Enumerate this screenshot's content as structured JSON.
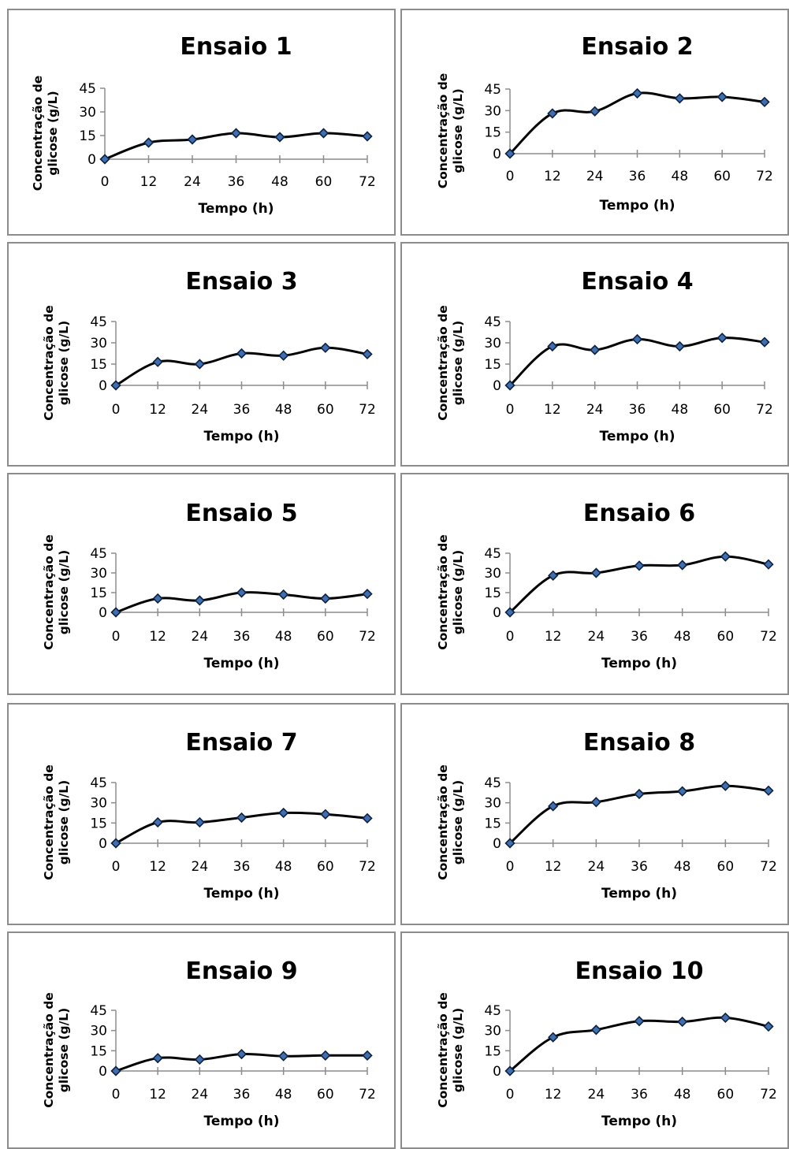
{
  "chart_data": [
    {
      "type": "line",
      "title": "Ensaio 1",
      "xlabel": "Tempo (h)",
      "ylabel": "Concentração de glicose (g/L)",
      "x": [
        0,
        12,
        24,
        36,
        48,
        60,
        72
      ],
      "values": [
        0,
        10.5,
        12.5,
        16.5,
        14,
        16.5,
        14.5
      ],
      "xticks": [
        "0",
        "12",
        "24",
        "36",
        "48",
        "60",
        "72"
      ],
      "yticks": [
        "0",
        "15",
        "30",
        "45"
      ],
      "ylim": [
        0,
        45
      ],
      "grid": false,
      "legend": "none"
    },
    {
      "type": "line",
      "title": "Ensaio 2",
      "xlabel": "Tempo (h)",
      "ylabel": "Concentração de glicose (g/L)",
      "x": [
        0,
        12,
        24,
        36,
        48,
        60,
        72
      ],
      "values": [
        0,
        28,
        29.5,
        42,
        38.5,
        39.5,
        36
      ],
      "xticks": [
        "0",
        "12",
        "24",
        "36",
        "48",
        "60",
        "72"
      ],
      "yticks": [
        "0",
        "15",
        "30",
        "45"
      ],
      "ylim": [
        0,
        45
      ],
      "grid": false,
      "legend": "none"
    },
    {
      "type": "line",
      "title": "Ensaio 3",
      "xlabel": "Tempo (h)",
      "ylabel": "Concentração de glicose (g/L)",
      "x": [
        0,
        12,
        24,
        36,
        48,
        60,
        72
      ],
      "values": [
        0,
        16.5,
        15,
        22.5,
        21,
        26.5,
        22
      ],
      "xticks": [
        "0",
        "12",
        "24",
        "36",
        "48",
        "60",
        "72"
      ],
      "yticks": [
        "0",
        "15",
        "30",
        "45"
      ],
      "ylim": [
        0,
        45
      ],
      "grid": false,
      "legend": "none"
    },
    {
      "type": "line",
      "title": "Ensaio 4",
      "xlabel": "Tempo (h)",
      "ylabel": "Concentração de glicose (g/L)",
      "x": [
        0,
        12,
        24,
        36,
        48,
        60,
        72
      ],
      "values": [
        0,
        27.5,
        25,
        32.5,
        27.5,
        33.5,
        30.5
      ],
      "xticks": [
        "0",
        "12",
        "24",
        "36",
        "48",
        "60",
        "72"
      ],
      "yticks": [
        "0",
        "15",
        "30",
        "45"
      ],
      "ylim": [
        0,
        45
      ],
      "grid": false,
      "legend": "none"
    },
    {
      "type": "line",
      "title": "Ensaio 5",
      "xlabel": "Tempo (h)",
      "ylabel": "Concentração de glicose (g/L)",
      "x": [
        0,
        12,
        24,
        36,
        48,
        60,
        72
      ],
      "values": [
        0,
        10.5,
        9,
        15,
        13.5,
        10.5,
        14
      ],
      "xticks": [
        "0",
        "12",
        "24",
        "36",
        "48",
        "60",
        "72"
      ],
      "yticks": [
        "0",
        "15",
        "30",
        "45"
      ],
      "ylim": [
        0,
        45
      ],
      "grid": false,
      "legend": "none"
    },
    {
      "type": "line",
      "title": "Ensaio 6",
      "xlabel": "Tempo (h)",
      "ylabel": "Concentração de glicose (g/L)",
      "x": [
        0,
        12,
        24,
        36,
        48,
        60,
        72
      ],
      "values": [
        0,
        28,
        30,
        35.5,
        36,
        42.5,
        36.5
      ],
      "xticks": [
        "0",
        "12",
        "24",
        "36",
        "48",
        "60",
        "72"
      ],
      "yticks": [
        "0",
        "15",
        "30",
        "45"
      ],
      "ylim": [
        0,
        45
      ],
      "grid": false,
      "legend": "none"
    },
    {
      "type": "line",
      "title": "Ensaio 7",
      "xlabel": "Tempo (h)",
      "ylabel": "Concentração de glicose (g/L)",
      "x": [
        0,
        12,
        24,
        36,
        48,
        60,
        72
      ],
      "values": [
        0,
        15.5,
        15.5,
        19,
        22.5,
        21.5,
        18.5
      ],
      "xticks": [
        "0",
        "12",
        "24",
        "36",
        "48",
        "60",
        "72"
      ],
      "yticks": [
        "0",
        "15",
        "30",
        "45"
      ],
      "ylim": [
        0,
        45
      ],
      "grid": false,
      "legend": "none"
    },
    {
      "type": "line",
      "title": "Ensaio 8",
      "xlabel": "Tempo (h)",
      "ylabel": "Concentração de glicose (g/L)",
      "x": [
        0,
        12,
        24,
        36,
        48,
        60,
        72
      ],
      "values": [
        0,
        27.5,
        30.5,
        36.5,
        38.5,
        42.5,
        39
      ],
      "xticks": [
        "0",
        "12",
        "24",
        "36",
        "48",
        "60",
        "72"
      ],
      "yticks": [
        "0",
        "15",
        "30",
        "45"
      ],
      "ylim": [
        0,
        45
      ],
      "grid": false,
      "legend": "none"
    },
    {
      "type": "line",
      "title": "Ensaio 9",
      "xlabel": "Tempo (h)",
      "ylabel": "Concentração de glicose (g/L)",
      "x": [
        0,
        12,
        24,
        36,
        48,
        60,
        72
      ],
      "values": [
        0,
        9.5,
        8.5,
        12.5,
        11,
        11.5,
        11.5
      ],
      "xticks": [
        "0",
        "12",
        "24",
        "36",
        "48",
        "60",
        "72"
      ],
      "yticks": [
        "0",
        "15",
        "30",
        "45"
      ],
      "ylim": [
        0,
        45
      ],
      "grid": false,
      "legend": "none"
    },
    {
      "type": "line",
      "title": "Ensaio 10",
      "xlabel": "Tempo (h)",
      "ylabel": "Concentração de glicose (g/L)",
      "x": [
        0,
        12,
        24,
        36,
        48,
        60,
        72
      ],
      "values": [
        0,
        25,
        30.5,
        37,
        36.5,
        39.5,
        33
      ],
      "xticks": [
        "0",
        "12",
        "24",
        "36",
        "48",
        "60",
        "72"
      ],
      "yticks": [
        "0",
        "15",
        "30",
        "45"
      ],
      "ylim": [
        0,
        45
      ],
      "grid": false,
      "legend": "none"
    }
  ],
  "colors": {
    "line": "#000000",
    "marker_fill": "#3f6fb0",
    "marker_stroke": "#0e2240",
    "axis": "#8c8c8c",
    "border": "#8c8c8c"
  },
  "markers": "diamond"
}
